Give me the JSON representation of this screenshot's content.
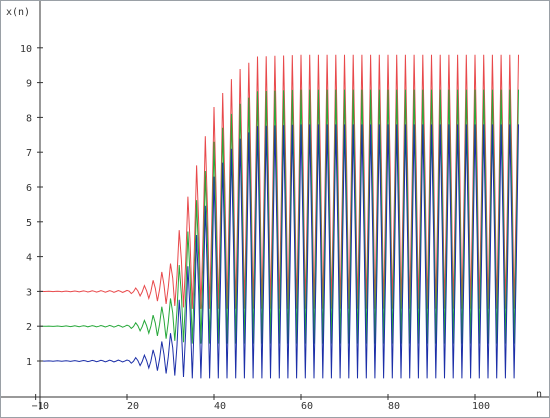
{
  "chart_data": {
    "type": "line",
    "xlabel": "n",
    "ylabel": "x(n)",
    "xlim": [
      -1,
      111
    ],
    "ylim": [
      0.3,
      10.7
    ],
    "x_ticks": [
      -1,
      0,
      20,
      40,
      60,
      80,
      100
    ],
    "x_tick_labels": [
      "−1",
      "0",
      "20",
      "40",
      "60",
      "80",
      "100"
    ],
    "y_ticks": [
      1,
      2,
      3,
      4,
      5,
      6,
      7,
      8,
      9,
      10
    ],
    "y_tick_labels": [
      "1",
      "2",
      "3",
      "4",
      "5",
      "6",
      "7",
      "8",
      "9",
      "10"
    ],
    "grid": false,
    "n_range": [
      0,
      110
    ],
    "series": [
      {
        "color": "#e8494b",
        "offset": 2,
        "description_points": {
          "n": [
            0,
            20,
            25,
            30,
            35,
            40,
            45,
            50,
            60,
            80,
            110
          ],
          "upper": [
            3,
            3.03,
            3.2,
            3.8,
            6.2,
            8.3,
            9.3,
            9.75,
            9.8,
            9.8,
            9.8
          ],
          "lower": [
            3,
            2.97,
            2.8,
            2.6,
            2.5,
            2.5,
            2.5,
            2.5,
            2.5,
            2.5,
            2.5
          ]
        }
      },
      {
        "color": "#27a83a",
        "offset": 1,
        "description_points": {
          "n": [
            0,
            20,
            25,
            30,
            35,
            40,
            45,
            50,
            60,
            80,
            110
          ],
          "upper": [
            2,
            2.03,
            2.2,
            2.8,
            5.2,
            7.3,
            8.3,
            8.75,
            8.8,
            8.8,
            8.8
          ],
          "lower": [
            2,
            1.97,
            1.8,
            1.6,
            1.5,
            1.5,
            1.5,
            1.5,
            1.5,
            1.5,
            1.5
          ]
        }
      },
      {
        "color": "#1c2fa8",
        "offset": 0,
        "description_points": {
          "n": [
            0,
            20,
            25,
            30,
            35,
            40,
            45,
            50,
            60,
            80,
            110
          ],
          "upper": [
            1,
            1.03,
            1.2,
            1.8,
            4.2,
            6.3,
            7.3,
            7.75,
            7.8,
            7.8,
            7.8
          ],
          "lower": [
            1,
            0.97,
            0.8,
            0.6,
            0.5,
            0.5,
            0.5,
            0.5,
            0.5,
            0.5,
            0.5
          ]
        }
      }
    ],
    "axis_colors": {
      "axis": "#333333",
      "frame": "#9aa0a6"
    }
  }
}
